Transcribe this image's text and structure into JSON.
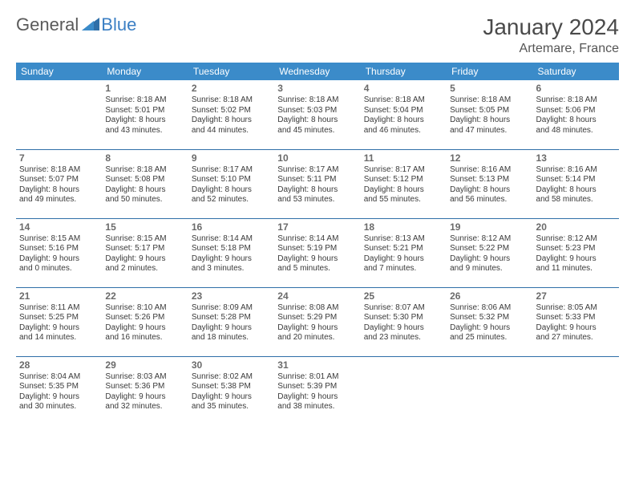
{
  "brand": {
    "text1": "General",
    "text2": "Blue",
    "text1_color": "#5a5a5a",
    "text2_color": "#3b7fc4"
  },
  "title": "January 2024",
  "location": "Artemare, France",
  "colors": {
    "header_bg": "#3b8bc9",
    "header_text": "#ffffff",
    "row_sep": "#2f6fa8",
    "daynum": "#6a6a6a",
    "body_text": "#3a3a3a",
    "title_color": "#4a4a4a",
    "background": "#ffffff"
  },
  "typography": {
    "month_title_fontsize": 28,
    "location_fontsize": 16,
    "weekday_fontsize": 12,
    "daynum_fontsize": 12,
    "cell_fontsize": 10
  },
  "weekdays": [
    "Sunday",
    "Monday",
    "Tuesday",
    "Wednesday",
    "Thursday",
    "Friday",
    "Saturday"
  ],
  "weeks": [
    [
      {
        "day": "",
        "lines": []
      },
      {
        "day": "1",
        "lines": [
          "Sunrise: 8:18 AM",
          "Sunset: 5:01 PM",
          "Daylight: 8 hours",
          "and 43 minutes."
        ]
      },
      {
        "day": "2",
        "lines": [
          "Sunrise: 8:18 AM",
          "Sunset: 5:02 PM",
          "Daylight: 8 hours",
          "and 44 minutes."
        ]
      },
      {
        "day": "3",
        "lines": [
          "Sunrise: 8:18 AM",
          "Sunset: 5:03 PM",
          "Daylight: 8 hours",
          "and 45 minutes."
        ]
      },
      {
        "day": "4",
        "lines": [
          "Sunrise: 8:18 AM",
          "Sunset: 5:04 PM",
          "Daylight: 8 hours",
          "and 46 minutes."
        ]
      },
      {
        "day": "5",
        "lines": [
          "Sunrise: 8:18 AM",
          "Sunset: 5:05 PM",
          "Daylight: 8 hours",
          "and 47 minutes."
        ]
      },
      {
        "day": "6",
        "lines": [
          "Sunrise: 8:18 AM",
          "Sunset: 5:06 PM",
          "Daylight: 8 hours",
          "and 48 minutes."
        ]
      }
    ],
    [
      {
        "day": "7",
        "lines": [
          "Sunrise: 8:18 AM",
          "Sunset: 5:07 PM",
          "Daylight: 8 hours",
          "and 49 minutes."
        ]
      },
      {
        "day": "8",
        "lines": [
          "Sunrise: 8:18 AM",
          "Sunset: 5:08 PM",
          "Daylight: 8 hours",
          "and 50 minutes."
        ]
      },
      {
        "day": "9",
        "lines": [
          "Sunrise: 8:17 AM",
          "Sunset: 5:10 PM",
          "Daylight: 8 hours",
          "and 52 minutes."
        ]
      },
      {
        "day": "10",
        "lines": [
          "Sunrise: 8:17 AM",
          "Sunset: 5:11 PM",
          "Daylight: 8 hours",
          "and 53 minutes."
        ]
      },
      {
        "day": "11",
        "lines": [
          "Sunrise: 8:17 AM",
          "Sunset: 5:12 PM",
          "Daylight: 8 hours",
          "and 55 minutes."
        ]
      },
      {
        "day": "12",
        "lines": [
          "Sunrise: 8:16 AM",
          "Sunset: 5:13 PM",
          "Daylight: 8 hours",
          "and 56 minutes."
        ]
      },
      {
        "day": "13",
        "lines": [
          "Sunrise: 8:16 AM",
          "Sunset: 5:14 PM",
          "Daylight: 8 hours",
          "and 58 minutes."
        ]
      }
    ],
    [
      {
        "day": "14",
        "lines": [
          "Sunrise: 8:15 AM",
          "Sunset: 5:16 PM",
          "Daylight: 9 hours",
          "and 0 minutes."
        ]
      },
      {
        "day": "15",
        "lines": [
          "Sunrise: 8:15 AM",
          "Sunset: 5:17 PM",
          "Daylight: 9 hours",
          "and 2 minutes."
        ]
      },
      {
        "day": "16",
        "lines": [
          "Sunrise: 8:14 AM",
          "Sunset: 5:18 PM",
          "Daylight: 9 hours",
          "and 3 minutes."
        ]
      },
      {
        "day": "17",
        "lines": [
          "Sunrise: 8:14 AM",
          "Sunset: 5:19 PM",
          "Daylight: 9 hours",
          "and 5 minutes."
        ]
      },
      {
        "day": "18",
        "lines": [
          "Sunrise: 8:13 AM",
          "Sunset: 5:21 PM",
          "Daylight: 9 hours",
          "and 7 minutes."
        ]
      },
      {
        "day": "19",
        "lines": [
          "Sunrise: 8:12 AM",
          "Sunset: 5:22 PM",
          "Daylight: 9 hours",
          "and 9 minutes."
        ]
      },
      {
        "day": "20",
        "lines": [
          "Sunrise: 8:12 AM",
          "Sunset: 5:23 PM",
          "Daylight: 9 hours",
          "and 11 minutes."
        ]
      }
    ],
    [
      {
        "day": "21",
        "lines": [
          "Sunrise: 8:11 AM",
          "Sunset: 5:25 PM",
          "Daylight: 9 hours",
          "and 14 minutes."
        ]
      },
      {
        "day": "22",
        "lines": [
          "Sunrise: 8:10 AM",
          "Sunset: 5:26 PM",
          "Daylight: 9 hours",
          "and 16 minutes."
        ]
      },
      {
        "day": "23",
        "lines": [
          "Sunrise: 8:09 AM",
          "Sunset: 5:28 PM",
          "Daylight: 9 hours",
          "and 18 minutes."
        ]
      },
      {
        "day": "24",
        "lines": [
          "Sunrise: 8:08 AM",
          "Sunset: 5:29 PM",
          "Daylight: 9 hours",
          "and 20 minutes."
        ]
      },
      {
        "day": "25",
        "lines": [
          "Sunrise: 8:07 AM",
          "Sunset: 5:30 PM",
          "Daylight: 9 hours",
          "and 23 minutes."
        ]
      },
      {
        "day": "26",
        "lines": [
          "Sunrise: 8:06 AM",
          "Sunset: 5:32 PM",
          "Daylight: 9 hours",
          "and 25 minutes."
        ]
      },
      {
        "day": "27",
        "lines": [
          "Sunrise: 8:05 AM",
          "Sunset: 5:33 PM",
          "Daylight: 9 hours",
          "and 27 minutes."
        ]
      }
    ],
    [
      {
        "day": "28",
        "lines": [
          "Sunrise: 8:04 AM",
          "Sunset: 5:35 PM",
          "Daylight: 9 hours",
          "and 30 minutes."
        ]
      },
      {
        "day": "29",
        "lines": [
          "Sunrise: 8:03 AM",
          "Sunset: 5:36 PM",
          "Daylight: 9 hours",
          "and 32 minutes."
        ]
      },
      {
        "day": "30",
        "lines": [
          "Sunrise: 8:02 AM",
          "Sunset: 5:38 PM",
          "Daylight: 9 hours",
          "and 35 minutes."
        ]
      },
      {
        "day": "31",
        "lines": [
          "Sunrise: 8:01 AM",
          "Sunset: 5:39 PM",
          "Daylight: 9 hours",
          "and 38 minutes."
        ]
      },
      {
        "day": "",
        "lines": []
      },
      {
        "day": "",
        "lines": []
      },
      {
        "day": "",
        "lines": []
      }
    ]
  ]
}
